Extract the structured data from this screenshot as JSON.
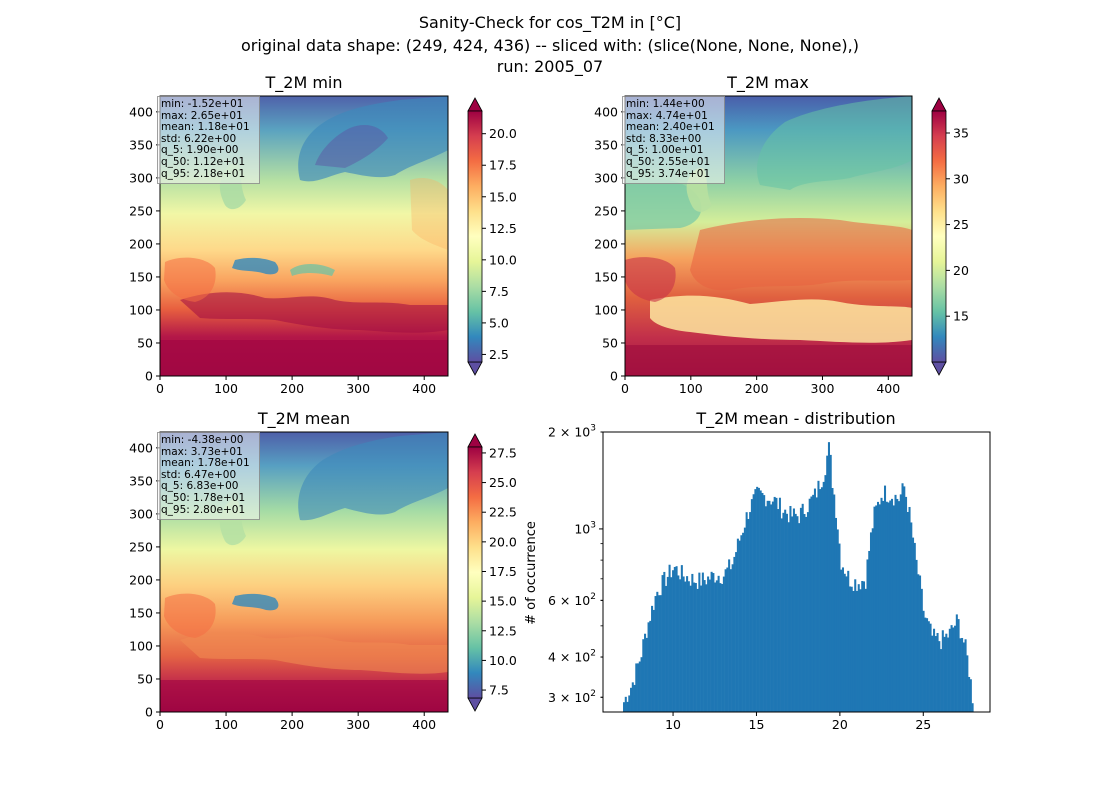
{
  "figure": {
    "title_lines": [
      "Sanity-Check for cos_T2M in [°C]",
      "original data shape: (249, 424, 436) -- sliced with: (slice(None, None, None),)",
      "run: 2005_07"
    ]
  },
  "panels": {
    "min": {
      "title": "T_2M min",
      "stats": [
        "min: -1.52e+01",
        "max: 2.65e+01",
        "mean: 1.18e+01",
        "std: 6.22e+00",
        "q_5: 1.90e+00",
        "q_50: 1.12e+01",
        "q_95: 2.18e+01"
      ],
      "xticks": [
        "0",
        "100",
        "200",
        "300",
        "400"
      ],
      "yticks": [
        "0",
        "50",
        "100",
        "150",
        "200",
        "250",
        "300",
        "350",
        "400"
      ],
      "cbar_ticks": [
        "2.5",
        "5.0",
        "7.5",
        "10.0",
        "12.5",
        "15.0",
        "17.5",
        "20.0"
      ],
      "cbar_range": [
        1.9,
        21.8
      ]
    },
    "max": {
      "title": "T_2M max",
      "stats": [
        "min: 1.44e+00",
        "max: 4.74e+01",
        "mean: 2.40e+01",
        "std: 8.33e+00",
        "q_5: 1.00e+01",
        "q_50: 2.55e+01",
        "q_95: 3.74e+01"
      ],
      "xticks": [
        "0",
        "100",
        "200",
        "300",
        "400"
      ],
      "yticks": [
        "0",
        "50",
        "100",
        "150",
        "200",
        "250",
        "300",
        "350",
        "400"
      ],
      "cbar_ticks": [
        "15",
        "20",
        "25",
        "30",
        "35"
      ],
      "cbar_range": [
        10.0,
        37.4
      ]
    },
    "mean": {
      "title": "T_2M mean",
      "stats": [
        "min: -4.38e+00",
        "max: 3.73e+01",
        "mean: 1.78e+01",
        "std: 6.47e+00",
        "q_5: 6.83e+00",
        "q_50: 1.78e+01",
        "q_95: 2.80e+01"
      ],
      "xticks": [
        "0",
        "100",
        "200",
        "300",
        "400"
      ],
      "yticks": [
        "0",
        "50",
        "100",
        "150",
        "200",
        "250",
        "300",
        "350",
        "400"
      ],
      "cbar_ticks": [
        "7.5",
        "10.0",
        "12.5",
        "15.0",
        "17.5",
        "20.0",
        "22.5",
        "25.0",
        "27.5"
      ],
      "cbar_range": [
        6.83,
        28.0
      ]
    }
  },
  "chart_data": [
    {
      "type": "heatmap",
      "title": "T_2M min",
      "x_range": [
        0,
        436
      ],
      "y_range": [
        0,
        424
      ],
      "colorbar_range": [
        1.9,
        21.8
      ],
      "colormap": "Spectral_r"
    },
    {
      "type": "heatmap",
      "title": "T_2M max",
      "x_range": [
        0,
        436
      ],
      "y_range": [
        0,
        424
      ],
      "colorbar_range": [
        10.0,
        37.4
      ],
      "colormap": "Spectral_r"
    },
    {
      "type": "heatmap",
      "title": "T_2M mean",
      "x_range": [
        0,
        436
      ],
      "y_range": [
        0,
        424
      ],
      "colorbar_range": [
        6.83,
        28.0
      ],
      "colormap": "Spectral_r"
    },
    {
      "type": "bar",
      "title": "T_2M mean - distribution",
      "ylabel": "# of occurrence",
      "ylog": true,
      "xlim": [
        5.8,
        29.0
      ],
      "ylim": [
        270,
        2000
      ],
      "xticks": [
        "10",
        "15",
        "20",
        "25"
      ],
      "ytick_labels": [
        {
          "value": 2000,
          "base": "2",
          "sup": "3"
        },
        {
          "value": 1000,
          "base": "10",
          "sup": "3"
        },
        {
          "value": 600,
          "base": "6",
          "sup": "2"
        },
        {
          "value": 400,
          "base": "4",
          "sup": "2"
        },
        {
          "value": 300,
          "base": "3",
          "sup": "2"
        }
      ],
      "color": "#1f77b4",
      "x": [
        7.0,
        7.5,
        8.0,
        8.5,
        9.0,
        9.5,
        10.0,
        10.5,
        11.0,
        11.5,
        12.0,
        12.5,
        13.0,
        13.5,
        14.0,
        14.5,
        15.0,
        15.5,
        16.0,
        16.5,
        17.0,
        17.5,
        18.0,
        18.5,
        19.0,
        19.3,
        19.5,
        20.0,
        20.5,
        21.0,
        21.5,
        22.0,
        22.5,
        23.0,
        23.5,
        23.8,
        24.0,
        24.5,
        25.0,
        25.5,
        26.0,
        26.5,
        27.0,
        27.5,
        27.9
      ],
      "values": [
        290,
        330,
        400,
        520,
        640,
        700,
        760,
        720,
        700,
        690,
        700,
        720,
        720,
        780,
        950,
        1150,
        1280,
        1260,
        1230,
        1150,
        1100,
        1100,
        1180,
        1280,
        1500,
        1800,
        1400,
        800,
        700,
        680,
        700,
        1100,
        1300,
        1280,
        1240,
        1350,
        1200,
        800,
        540,
        460,
        450,
        470,
        520,
        420,
        300
      ]
    }
  ]
}
